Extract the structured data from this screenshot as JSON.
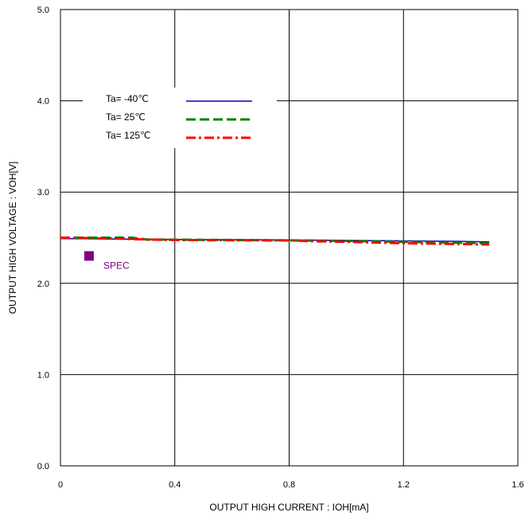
{
  "chart_data": {
    "type": "line",
    "title": "",
    "xlabel": "OUTPUT HIGH CURRENT : IOH[mA]",
    "ylabel": "OUTPUT HIGH VOLTAGE : VOH[V]",
    "xlim": [
      0,
      1.6
    ],
    "ylim": [
      0,
      5.0
    ],
    "xticks": [
      "0",
      "0.4",
      "0.8",
      "1.2",
      "1.6"
    ],
    "yticks": [
      "0.0",
      "1.0",
      "2.0",
      "3.0",
      "4.0",
      "5.0"
    ],
    "grid": true,
    "legend_position": "top-left",
    "series": [
      {
        "name": "Ta= -40℃",
        "color": "#0000cc",
        "style": "solid",
        "x": [
          0,
          0.2,
          0.4,
          0.6,
          0.8,
          1.0,
          1.2,
          1.4,
          1.5
        ],
        "y": [
          2.49,
          2.485,
          2.48,
          2.478,
          2.475,
          2.47,
          2.465,
          2.46,
          2.455
        ]
      },
      {
        "name": "Ta=  25℃",
        "color": "#008000",
        "style": "dashed",
        "x": [
          0,
          0.25,
          0.3,
          0.4,
          0.6,
          0.8,
          1.0,
          1.2,
          1.4,
          1.5
        ],
        "y": [
          2.5,
          2.5,
          2.48,
          2.478,
          2.475,
          2.47,
          2.465,
          2.455,
          2.445,
          2.44
        ]
      },
      {
        "name": "Ta= 125℃",
        "color": "#ff0000",
        "style": "dashdot",
        "x": [
          0,
          0.2,
          0.3,
          0.4,
          0.6,
          0.8,
          0.9,
          1.0,
          1.2,
          1.4,
          1.5
        ],
        "y": [
          2.5,
          2.49,
          2.48,
          2.475,
          2.472,
          2.47,
          2.46,
          2.455,
          2.44,
          2.43,
          2.425
        ]
      }
    ],
    "spec": {
      "label": "SPEC",
      "x": 0.1,
      "y": 2.3,
      "color": "#800080"
    }
  }
}
